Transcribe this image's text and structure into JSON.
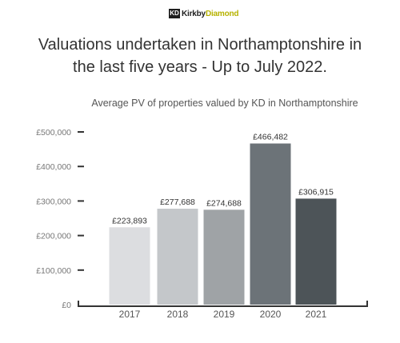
{
  "logo": {
    "mark": "KD",
    "name_part1": "Kirkby",
    "name_part2": "Diamond"
  },
  "header": {
    "title_line1": "Valuations undertaken in Northamptonshire in",
    "title_line2": "the last five years - Up to July 2022."
  },
  "chart_data": {
    "type": "bar",
    "title": "Valuations undertaken in Northamptonshire in the last five years - Up to July 2022.",
    "subtitle": "Average PV of properties valued by KD in Northamptonshire",
    "categories": [
      "2017",
      "2018",
      "2019",
      "2020",
      "2021"
    ],
    "values": [
      223893,
      277688,
      274688,
      466482,
      306915
    ],
    "value_labels": [
      "£223,893",
      "£277,688",
      "£274,688",
      "£466,482",
      "£306,915"
    ],
    "bar_colors": [
      "#dcdde0",
      "#c4c7ca",
      "#9fa3a6",
      "#6c7378",
      "#4d5458"
    ],
    "ylim": [
      0,
      500000
    ],
    "yticks": [
      0,
      100000,
      200000,
      300000,
      400000,
      500000
    ],
    "ytick_labels": [
      "£0",
      "£100,000",
      "£200,000",
      "£300,000",
      "£400,000",
      "£500,000"
    ],
    "xlabel": "",
    "ylabel": "",
    "grid": false,
    "legend": "none"
  }
}
